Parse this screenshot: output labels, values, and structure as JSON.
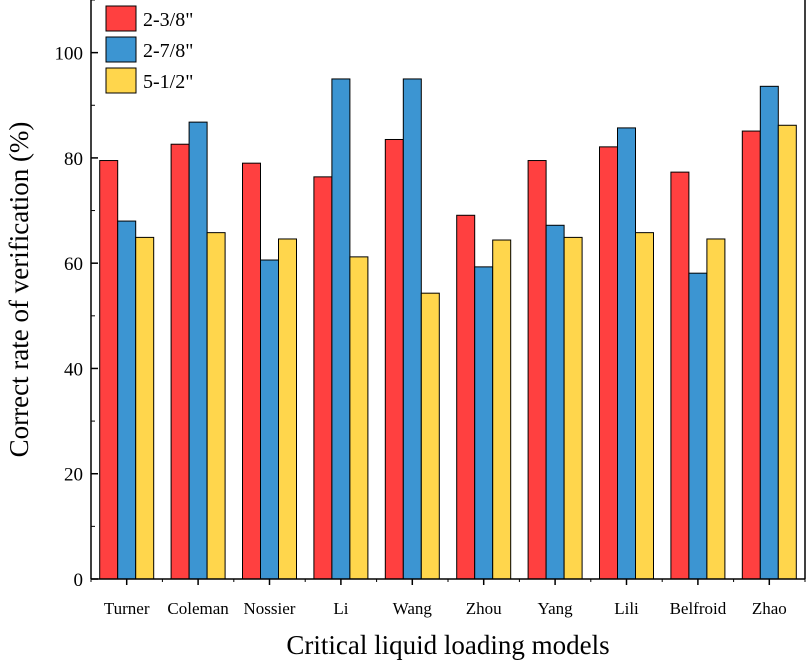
{
  "chart_data": {
    "type": "bar",
    "title": "",
    "xlabel": "Critical liquid loading models",
    "ylabel": "Correct rate of verification (%)",
    "ylim": [
      0,
      110
    ],
    "yticks": [
      0,
      20,
      40,
      60,
      80,
      100
    ],
    "categories": [
      "Turner",
      "Coleman",
      "Nossier",
      "Li",
      "Wang",
      "Zhou",
      "Yang",
      "Lili",
      "Belfroid",
      "Zhao"
    ],
    "series": [
      {
        "name": "2-3/8\"",
        "color": "#ff4040",
        "values": [
          79.5,
          82.6,
          79.0,
          76.4,
          83.5,
          69.1,
          79.5,
          82.1,
          77.3,
          85.1
        ]
      },
      {
        "name": "2-7/8\"",
        "color": "#3c95d2",
        "values": [
          68.0,
          86.8,
          60.6,
          95.0,
          95.0,
          59.3,
          67.2,
          85.7,
          58.1,
          93.6
        ]
      },
      {
        "name": "5-1/2\"",
        "color": "#ffd64c",
        "values": [
          64.9,
          65.8,
          64.6,
          61.2,
          54.3,
          64.4,
          64.9,
          65.8,
          64.6,
          86.2
        ]
      }
    ],
    "legend_position": "top-left"
  }
}
